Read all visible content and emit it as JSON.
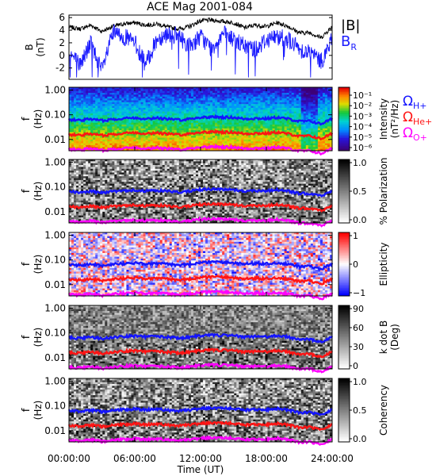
{
  "title": "ACE Mag 2001-084",
  "colors": {
    "magnitude": "#000000",
    "radial": "#1c1cff",
    "h_plus": "#1414ff",
    "he_plus": "#ff1414",
    "o_plus": "#ff00ff"
  },
  "chart_data": [
    {
      "type": "line",
      "panel": "magnetic-field",
      "ylabel": "B\n(nT)",
      "ylim": [
        -3.8,
        6.4
      ],
      "y_ticks": [
        "6",
        "4",
        "2",
        "0",
        "-2"
      ],
      "legend_position": "right",
      "x": [
        0,
        1,
        2,
        3,
        4,
        5,
        6,
        7,
        8,
        9,
        10,
        11,
        12,
        13,
        14,
        15,
        16,
        17,
        18,
        19,
        20,
        21,
        22,
        23,
        24
      ],
      "series": [
        {
          "name": "|B|",
          "color": "#000000",
          "values": [
            4.5,
            4.2,
            4.8,
            3.8,
            4.6,
            5.0,
            5.2,
            4.8,
            5.0,
            4.5,
            4.2,
            4.6,
            5.5,
            5.6,
            5.4,
            5.2,
            4.4,
            4.8,
            4.6,
            5.2,
            4.6,
            3.6,
            3.6,
            2.8,
            4.6
          ]
        },
        {
          "name_main": "B",
          "name_sub": "R",
          "color": "#1c1cff",
          "values": [
            0.5,
            -1.5,
            2.0,
            -2.5,
            3.5,
            3.0,
            2.0,
            -1.5,
            2.5,
            3.5,
            3.0,
            1.5,
            3.0,
            1.0,
            3.5,
            2.5,
            1.5,
            1.0,
            2.5,
            3.0,
            2.5,
            1.0,
            0.5,
            -1.0,
            2.5
          ]
        }
      ]
    },
    {
      "type": "heatmap",
      "panel": "intensity",
      "ylabel": "f\n(Hz)",
      "yscale": "log",
      "y_ticks": [
        "1.00",
        "0.10",
        "0.01"
      ],
      "colorbar": {
        "label": "Intensity\n(nT²/Hz)",
        "scale": "log",
        "ticks": [
          "10⁻¹",
          "10⁻²",
          "10⁻³",
          "10⁻⁴",
          "10⁻⁵",
          "10⁻⁶"
        ],
        "colormap": "rainbow"
      },
      "legend_position": "right",
      "legend": [
        {
          "main": "Ω",
          "sub": "H+",
          "color": "#1414ff"
        },
        {
          "main": "Ω",
          "sub": "He+",
          "color": "#ff1414"
        },
        {
          "main": "Ω",
          "sub": "O+",
          "color": "#ff00ff"
        }
      ]
    },
    {
      "type": "heatmap",
      "panel": "polarization",
      "ylabel": "f\n(Hz)",
      "yscale": "log",
      "y_ticks": [
        "1.00",
        "0.10",
        "0.01"
      ],
      "colorbar": {
        "label": "% Polarization",
        "ticks": [
          "1.0",
          "0.5",
          "0.0"
        ],
        "range": [
          0,
          1
        ],
        "colormap": "gray"
      }
    },
    {
      "type": "heatmap",
      "panel": "ellipticity",
      "ylabel": "f\n(Hz)",
      "yscale": "log",
      "y_ticks": [
        "1.00",
        "0.10",
        "0.01"
      ],
      "colorbar": {
        "label": "Ellipticity",
        "ticks": [
          "1",
          "0",
          "−1"
        ],
        "range": [
          -1,
          1
        ],
        "colormap": "blue-white-red"
      }
    },
    {
      "type": "heatmap",
      "panel": "k-dot-b",
      "ylabel": "f\n(Hz)",
      "yscale": "log",
      "y_ticks": [
        "1.00",
        "0.10",
        "0.01"
      ],
      "colorbar": {
        "label": "k dot B\n(Deg)",
        "ticks": [
          "90",
          "60",
          "30",
          "0"
        ],
        "range": [
          0,
          90
        ],
        "colormap": "gray"
      }
    },
    {
      "type": "heatmap",
      "panel": "coherency",
      "ylabel": "f\n(Hz)",
      "yscale": "log",
      "y_ticks": [
        "1.00",
        "0.10",
        "0.01"
      ],
      "colorbar": {
        "label": "Coherency",
        "ticks": [
          "1.0",
          "0.5",
          "0.0"
        ],
        "range": [
          0,
          1
        ],
        "colormap": "gray"
      },
      "xlabel": "Time (UT)",
      "x_ticks": [
        "00:00:00",
        "06:00:00",
        "12:00:00",
        "18:00:00",
        "24:00:00"
      ]
    }
  ],
  "gyrofrequency_curves": {
    "x": [
      0,
      1,
      2,
      3,
      4,
      5,
      6,
      7,
      8,
      9,
      10,
      11,
      12,
      13,
      14,
      15,
      16,
      17,
      18,
      19,
      20,
      21,
      22,
      23,
      24
    ],
    "h_plus_hz": [
      0.065,
      0.06,
      0.068,
      0.058,
      0.066,
      0.072,
      0.075,
      0.07,
      0.074,
      0.068,
      0.062,
      0.068,
      0.078,
      0.082,
      0.08,
      0.078,
      0.068,
      0.072,
      0.07,
      0.078,
      0.068,
      0.054,
      0.055,
      0.042,
      0.068
    ],
    "he_plus_hz": [
      0.016,
      0.015,
      0.017,
      0.0145,
      0.0165,
      0.018,
      0.019,
      0.0175,
      0.0185,
      0.017,
      0.0155,
      0.017,
      0.0195,
      0.0205,
      0.02,
      0.0195,
      0.017,
      0.018,
      0.0175,
      0.0195,
      0.017,
      0.0135,
      0.014,
      0.0105,
      0.017
    ],
    "o_plus_hz": [
      0.0041,
      0.0038,
      0.0043,
      0.0036,
      0.0041,
      0.0045,
      0.0047,
      0.0044,
      0.0046,
      0.0043,
      0.0039,
      0.0043,
      0.0049,
      0.0051,
      0.005,
      0.0049,
      0.0043,
      0.0045,
      0.0044,
      0.0049,
      0.0043,
      0.0034,
      0.0035,
      0.0026,
      0.0043
    ]
  }
}
